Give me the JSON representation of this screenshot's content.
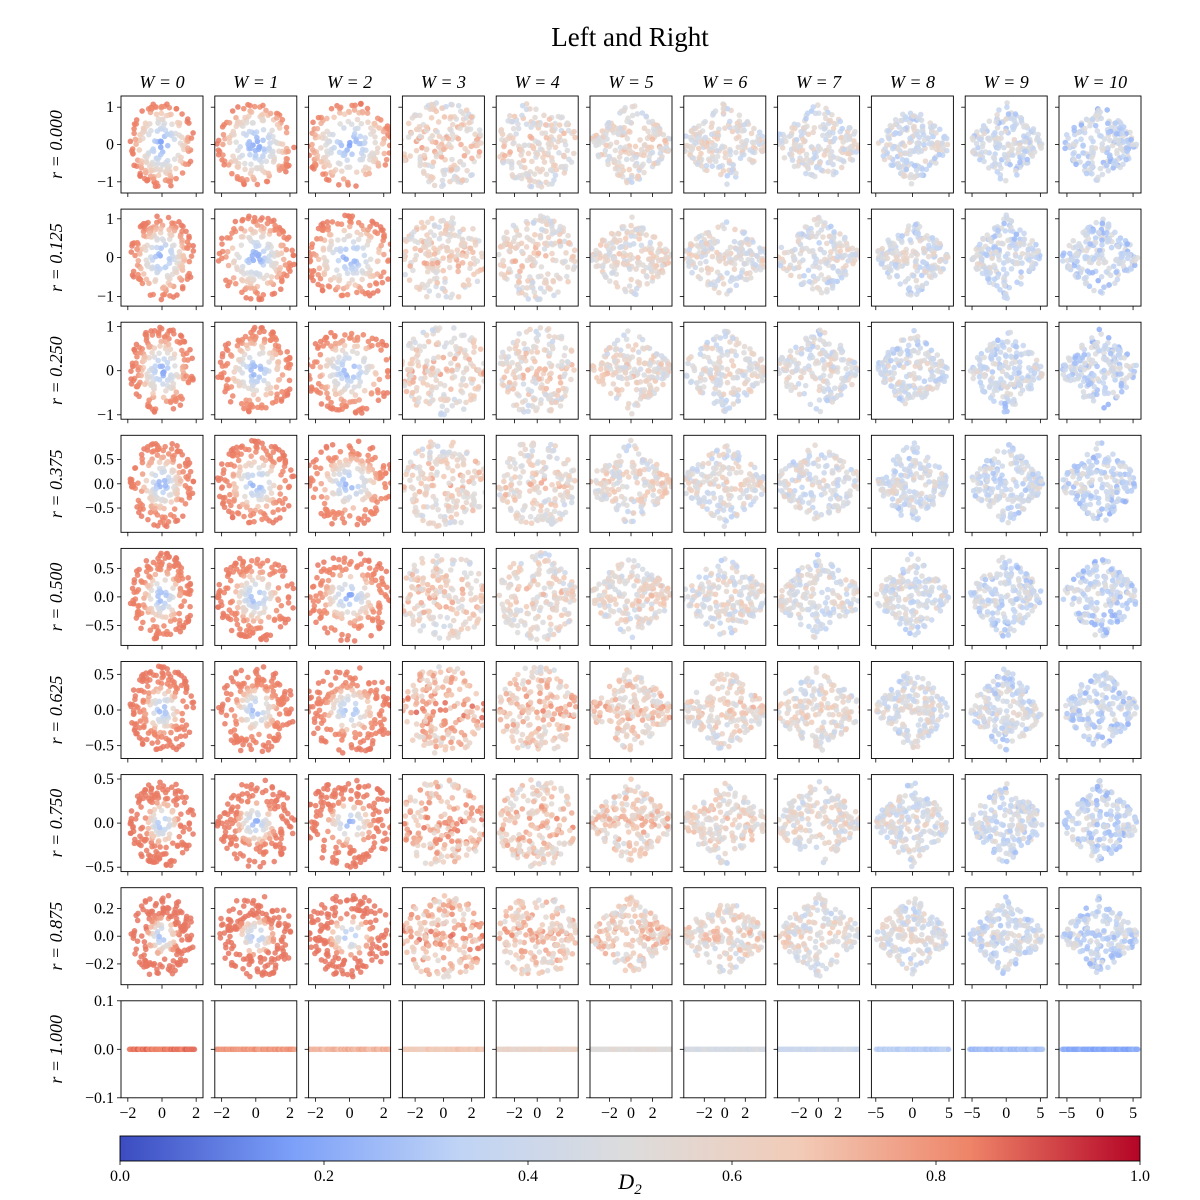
{
  "chart_data": {
    "type": "scatter",
    "title": "Left and Right",
    "colorbar": {
      "label": "D",
      "label_sub": "2",
      "range": [
        0.0,
        1.0
      ],
      "ticks": [
        "0.0",
        "0.2",
        "0.4",
        "0.6",
        "0.8",
        "1.0"
      ],
      "colormap": "coolwarm",
      "colors": [
        "#3b4cc0",
        "#7b9ff9",
        "#c0d4f5",
        "#dddcdc",
        "#f2cbb7",
        "#ee8468",
        "#b40426"
      ]
    },
    "columns": [
      {
        "label": "W = 0",
        "xlim": [
          -2.4,
          2.4
        ],
        "xticks": [
          -2,
          0,
          2
        ],
        "xtick_labels": [
          "−2",
          "0",
          "2"
        ]
      },
      {
        "label": "W = 1",
        "xlim": [
          -2.4,
          2.4
        ],
        "xticks": [
          -2,
          0,
          2
        ],
        "xtick_labels": [
          "−2",
          "0",
          "2"
        ]
      },
      {
        "label": "W = 2",
        "xlim": [
          -2.4,
          2.4
        ],
        "xticks": [
          -2,
          0,
          2
        ],
        "xtick_labels": [
          "−2",
          "0",
          "2"
        ]
      },
      {
        "label": "W = 3",
        "xlim": [
          -2.9,
          2.9
        ],
        "xticks": [
          -2,
          0,
          2
        ],
        "xtick_labels": [
          "−2",
          "0",
          "2"
        ]
      },
      {
        "label": "W = 4",
        "xlim": [
          -3.6,
          3.6
        ],
        "xticks": [
          -2,
          0,
          2
        ],
        "xtick_labels": [
          "−2",
          "0",
          "2"
        ]
      },
      {
        "label": "W = 5",
        "xlim": [
          -3.8,
          3.8
        ],
        "xticks": [
          -2,
          0,
          2
        ],
        "xtick_labels": [
          "−2",
          "0",
          "2"
        ]
      },
      {
        "label": "W = 6",
        "xlim": [
          -4.0,
          4.0
        ],
        "xticks": [
          -2,
          0,
          2
        ],
        "xtick_labels": [
          "−2",
          "0",
          "2"
        ]
      },
      {
        "label": "W = 7",
        "xlim": [
          -4.2,
          4.2
        ],
        "xticks": [
          -2,
          0,
          2
        ],
        "xtick_labels": [
          "−2",
          "0",
          "2"
        ]
      },
      {
        "label": "W = 8",
        "xlim": [
          -5.6,
          5.6
        ],
        "xticks": [
          -5,
          0,
          5
        ],
        "xtick_labels": [
          "−5",
          "0",
          "5"
        ]
      },
      {
        "label": "W = 9",
        "xlim": [
          -6.0,
          6.0
        ],
        "xticks": [
          -5,
          0,
          5
        ],
        "xtick_labels": [
          "−5",
          "0",
          "5"
        ]
      },
      {
        "label": "W = 10",
        "xlim": [
          -6.2,
          6.2
        ],
        "xticks": [
          -5,
          0,
          5
        ],
        "xtick_labels": [
          "−5",
          "0",
          "5"
        ]
      }
    ],
    "rows": [
      {
        "label": "r = 0.000",
        "ylim": [
          -1.3,
          1.3
        ],
        "yticks": [
          -1,
          0,
          1
        ],
        "ytick_labels": [
          "−1",
          "0",
          "1"
        ],
        "height": 1.15
      },
      {
        "label": "r = 0.125",
        "ylim": [
          -1.25,
          1.25
        ],
        "yticks": [
          -1,
          0,
          1
        ],
        "ytick_labels": [
          "−1",
          "0",
          "1"
        ],
        "height": 1.1
      },
      {
        "label": "r = 0.250",
        "ylim": [
          -1.1,
          1.1
        ],
        "yticks": [
          -1,
          0,
          1
        ],
        "ytick_labels": [
          "−1",
          "0",
          "1"
        ],
        "height": 1.0
      },
      {
        "label": "r = 0.375",
        "ylim": [
          -1.0,
          1.0
        ],
        "yticks": [
          -0.5,
          0.0,
          0.5
        ],
        "ytick_labels": [
          "−0.5",
          "0.0",
          "0.5"
        ],
        "height": 0.9
      },
      {
        "label": "r = 0.500",
        "ylim": [
          -0.85,
          0.85
        ],
        "yticks": [
          -0.5,
          0.0,
          0.5
        ],
        "ytick_labels": [
          "−0.5",
          "0.0",
          "0.5"
        ],
        "height": 0.78
      },
      {
        "label": "r = 0.625",
        "ylim": [
          -0.68,
          0.68
        ],
        "yticks": [
          -0.5,
          0.0,
          0.5
        ],
        "ytick_labels": [
          "−0.5",
          "0.0",
          "0.5"
        ],
        "height": 0.62
      },
      {
        "label": "r = 0.750",
        "ylim": [
          -0.55,
          0.55
        ],
        "yticks": [
          -0.5,
          0.0,
          0.5
        ],
        "ytick_labels": [
          "−0.5",
          "0.0",
          "0.5"
        ],
        "height": 0.5
      },
      {
        "label": "r = 0.875",
        "ylim": [
          -0.35,
          0.35
        ],
        "yticks": [
          -0.2,
          0.0,
          0.2
        ],
        "ytick_labels": [
          "−0.2",
          "0.0",
          "0.2"
        ],
        "height": 0.3
      },
      {
        "label": "r = 1.000",
        "ylim": [
          -0.1,
          0.1
        ],
        "yticks": [
          -0.1,
          0.0,
          0.1
        ],
        "ytick_labels": [
          "−0.1",
          "0.0",
          "0.1"
        ],
        "height": 0.0
      }
    ]
  }
}
